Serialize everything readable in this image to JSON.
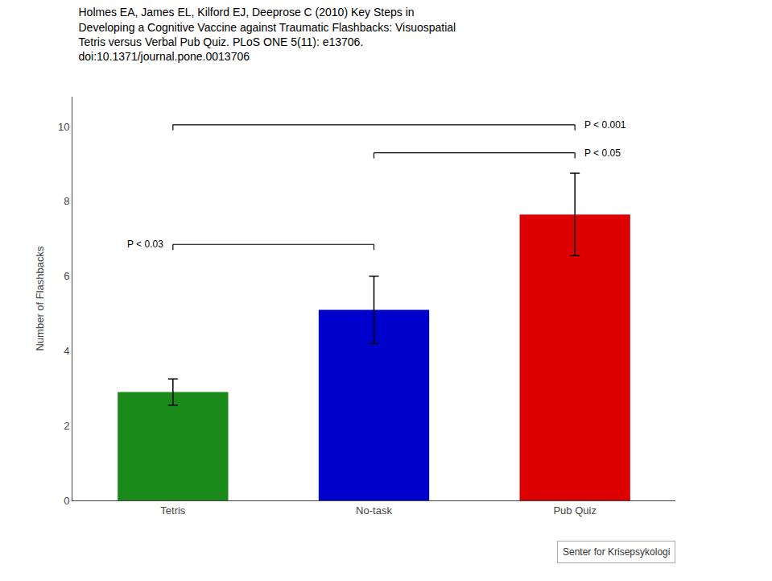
{
  "chart_data": {
    "type": "bar",
    "title": "Holmes EA, James EL, Kilford EJ, Deeprose C (2010) Key Steps in\nDeveloping a Cognitive Vaccine against Traumatic Flashbacks: Visuospatial\nTetris versus Verbal Pub Quiz. PLoS ONE 5(11): e13706.\ndoi:10.1371/journal.pone.0013706",
    "ylabel": "Number of Flashbacks",
    "categories": [
      "Tetris",
      "No-task",
      "Pub Quiz"
    ],
    "values": [
      2.9,
      5.1,
      7.65
    ],
    "errors": [
      0.35,
      0.9,
      1.1
    ],
    "colors": [
      "#1a8a1a",
      "#0000cc",
      "#dd0000"
    ],
    "ylim": [
      0,
      10.8
    ],
    "yticks": [
      0,
      2,
      4,
      6,
      8,
      10
    ],
    "grid": false,
    "annotations": [
      {
        "text": "P < 0.03",
        "from": "Tetris",
        "to": "No-task",
        "y": 6.85,
        "side": "left"
      },
      {
        "text": "P < 0.05",
        "from": "No-task",
        "to": "Pub Quiz",
        "y": 9.3,
        "side": "right"
      },
      {
        "text": "P < 0.001",
        "from": "Tetris",
        "to": "Pub Quiz",
        "y": 10.05,
        "side": "right"
      }
    ],
    "caption": "Senter for Krisepsykologi"
  }
}
